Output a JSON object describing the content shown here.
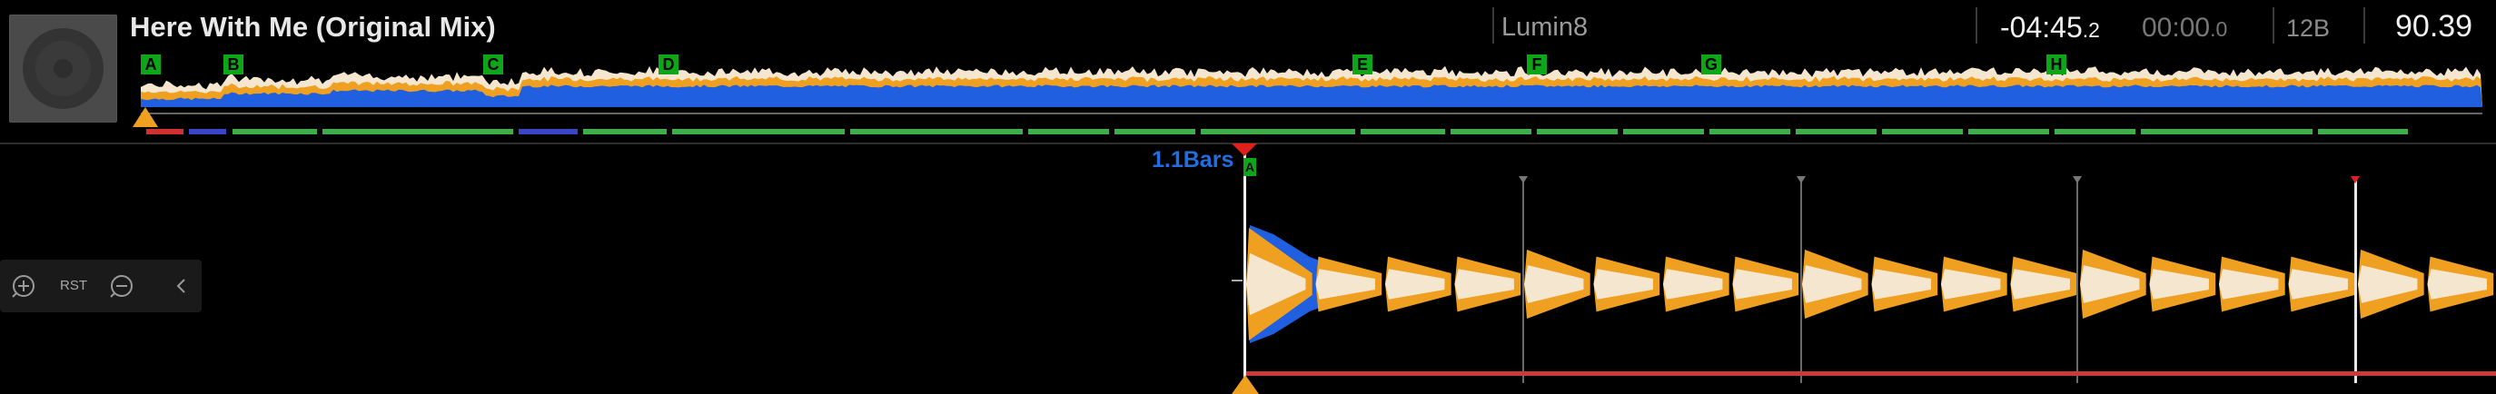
{
  "track": {
    "title": "Here With Me (Original Mix)",
    "artist": "Lumin8",
    "remaining_main": "-04:45",
    "remaining_frac": ".2",
    "elapsed_main": "00:00",
    "elapsed_frac": ".0",
    "key": "12B",
    "bpm": "90.39"
  },
  "cues": [
    {
      "label": "A"
    },
    {
      "label": "B"
    },
    {
      "label": "C"
    },
    {
      "label": "D"
    },
    {
      "label": "E"
    },
    {
      "label": "F"
    },
    {
      "label": "G"
    },
    {
      "label": "H"
    }
  ],
  "zoom": {
    "rst_label": "RST"
  },
  "detail": {
    "beat_jump_label": "1.1Bars",
    "cue_flag": "A"
  },
  "colors": {
    "waveform_low": "#1f5fe0",
    "waveform_mid": "#f0a020",
    "waveform_high": "#f5e6d0",
    "cue": "#0ea619",
    "loop": "#c93a3a",
    "phrase_intro": "#d03030",
    "phrase_up": "#3a46c8",
    "phrase_chorus": "#3fae4a"
  },
  "icons": [
    "zoom-in-icon",
    "zoom-out-icon",
    "collapse-icon",
    "jog-disc-icon"
  ]
}
